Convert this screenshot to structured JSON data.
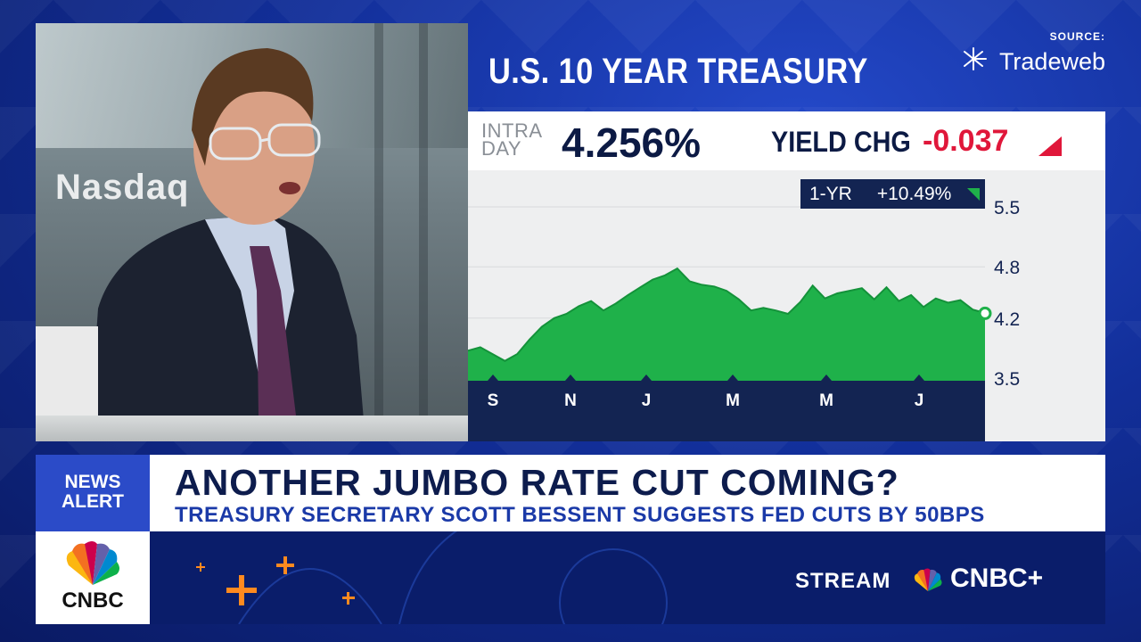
{
  "chart_title": "U.S. 10 YEAR TREASURY",
  "source": {
    "label": "SOURCE:",
    "brand": "Tradeweb"
  },
  "ticker": {
    "intra_line1": "INTRA",
    "intra_line2": "DAY",
    "price": "4.256%",
    "change_label": "YIELD CHG",
    "change_value": "-0.037",
    "change_color": "#e0173a"
  },
  "badge": {
    "label": "1-YR",
    "value": "+10.49%"
  },
  "background_sign": "Nasdaq",
  "chart_data": {
    "type": "area",
    "title": "U.S. 10 YEAR TREASURY",
    "x_tick_labels": [
      "S",
      "N",
      "J",
      "M",
      "M",
      "J"
    ],
    "y_tick_labels": [
      "5.5",
      "4.8",
      "4.2",
      "3.5"
    ],
    "ylim": [
      3.5,
      5.5
    ],
    "series": [
      {
        "color": "#1fb14a",
        "values": [
          3.82,
          3.86,
          3.78,
          3.7,
          3.78,
          3.95,
          4.1,
          4.2,
          4.25,
          4.34,
          4.4,
          4.29,
          4.37,
          4.47,
          4.56,
          4.65,
          4.7,
          4.78,
          4.63,
          4.59,
          4.57,
          4.52,
          4.42,
          4.29,
          4.32,
          4.29,
          4.25,
          4.39,
          4.58,
          4.43,
          4.49,
          4.52,
          4.55,
          4.42,
          4.56,
          4.4,
          4.47,
          4.33,
          4.43,
          4.38,
          4.41,
          4.3,
          4.26
        ]
      }
    ],
    "last_value": 4.256,
    "grid": true,
    "legend": "none"
  },
  "lower_third": {
    "alert_line1": "NEWS",
    "alert_line2": "ALERT",
    "headline": "ANOTHER JUMBO RATE CUT COMING?",
    "subhead": "TREASURY SECRETARY SCOTT BESSENT SUGGESTS FED CUTS BY 50BPS",
    "network": "CNBC",
    "stream_label": "STREAM",
    "stream_brand": "CNBC+"
  },
  "colors": {
    "navy": "#132452",
    "accent_blue": "#2b4bc8",
    "area_green": "#1fb14a",
    "deco_orange": "#ff8a1f"
  }
}
